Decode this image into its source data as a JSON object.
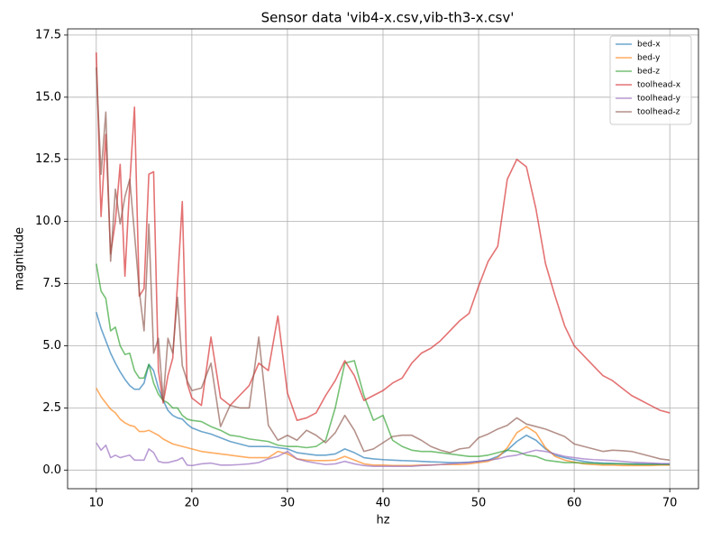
{
  "chart_data": {
    "type": "line",
    "title": "Sensor data 'vib4-x.csv,vib-th3-x.csv'",
    "x_label": "hz",
    "y_label": "magnitude",
    "x": [
      10,
      10.5,
      11,
      11.5,
      12,
      12.5,
      13,
      13.5,
      14,
      14.5,
      15,
      15.5,
      16,
      16.5,
      17,
      17.5,
      18,
      18.5,
      19,
      19.5,
      20,
      21,
      22,
      23,
      24,
      25,
      26,
      27,
      28,
      29,
      30,
      31,
      32,
      33,
      34,
      35,
      36,
      37,
      38,
      39,
      40,
      41,
      42,
      43,
      44,
      45,
      46,
      47,
      48,
      49,
      50,
      51,
      52,
      53,
      54,
      55,
      56,
      57,
      58,
      59,
      60,
      61,
      62,
      63,
      64,
      65,
      66,
      67,
      68,
      69,
      70
    ],
    "series": [
      {
        "name": "bed-x",
        "color": "#1f77b4",
        "values": [
          6.35,
          5.7,
          5.2,
          4.7,
          4.3,
          3.95,
          3.65,
          3.4,
          3.25,
          3.25,
          3.5,
          4.25,
          4.0,
          3.3,
          2.8,
          2.4,
          2.2,
          2.1,
          2.05,
          1.85,
          1.7,
          1.55,
          1.45,
          1.3,
          1.15,
          1.05,
          0.95,
          0.95,
          0.95,
          0.9,
          0.85,
          0.7,
          0.65,
          0.6,
          0.6,
          0.65,
          0.85,
          0.7,
          0.5,
          0.45,
          0.42,
          0.4,
          0.38,
          0.37,
          0.35,
          0.33,
          0.32,
          0.3,
          0.3,
          0.32,
          0.35,
          0.4,
          0.55,
          0.8,
          1.15,
          1.4,
          1.2,
          0.85,
          0.6,
          0.5,
          0.42,
          0.35,
          0.3,
          0.28,
          0.27,
          0.25,
          0.25,
          0.25,
          0.25,
          0.25,
          0.25
        ]
      },
      {
        "name": "bed-y",
        "color": "#ff7f0e",
        "values": [
          3.3,
          2.95,
          2.7,
          2.45,
          2.3,
          2.05,
          1.9,
          1.8,
          1.75,
          1.55,
          1.55,
          1.6,
          1.5,
          1.4,
          1.25,
          1.15,
          1.05,
          1.0,
          0.95,
          0.9,
          0.85,
          0.75,
          0.7,
          0.65,
          0.6,
          0.55,
          0.5,
          0.5,
          0.5,
          0.75,
          0.65,
          0.45,
          0.4,
          0.38,
          0.38,
          0.4,
          0.55,
          0.4,
          0.25,
          0.2,
          0.2,
          0.18,
          0.18,
          0.18,
          0.2,
          0.2,
          0.22,
          0.22,
          0.22,
          0.25,
          0.3,
          0.35,
          0.5,
          0.9,
          1.5,
          1.75,
          1.5,
          0.9,
          0.55,
          0.4,
          0.32,
          0.25,
          0.22,
          0.2,
          0.2,
          0.18,
          0.18,
          0.18,
          0.18,
          0.2,
          0.2
        ]
      },
      {
        "name": "bed-z",
        "color": "#2ca02c",
        "values": [
          8.3,
          7.2,
          6.9,
          5.6,
          5.75,
          5.0,
          4.65,
          4.7,
          4.0,
          3.7,
          3.7,
          4.25,
          3.5,
          3.05,
          2.8,
          2.7,
          2.5,
          2.5,
          2.2,
          2.05,
          2.0,
          1.95,
          1.75,
          1.6,
          1.4,
          1.35,
          1.25,
          1.2,
          1.15,
          1.0,
          0.95,
          0.95,
          0.9,
          0.95,
          1.2,
          2.5,
          4.3,
          4.4,
          3.0,
          2.0,
          2.2,
          1.2,
          0.95,
          0.8,
          0.75,
          0.75,
          0.7,
          0.65,
          0.6,
          0.55,
          0.55,
          0.6,
          0.7,
          0.8,
          0.75,
          0.6,
          0.55,
          0.4,
          0.35,
          0.3,
          0.3,
          0.28,
          0.27,
          0.25,
          0.25,
          0.25,
          0.23,
          0.22,
          0.22,
          0.22,
          0.22
        ]
      },
      {
        "name": "toolhead-x",
        "color": "#d62728",
        "values": [
          16.8,
          10.2,
          13.5,
          8.7,
          10.0,
          12.3,
          7.8,
          11.5,
          14.6,
          7.0,
          7.3,
          11.9,
          12.0,
          4.0,
          2.7,
          3.8,
          4.5,
          7.5,
          10.8,
          3.5,
          2.9,
          2.6,
          5.35,
          2.9,
          2.6,
          3.0,
          3.4,
          4.3,
          4.0,
          6.2,
          3.1,
          2.0,
          2.1,
          2.3,
          3.0,
          3.6,
          4.4,
          3.8,
          2.8,
          3.0,
          3.2,
          3.5,
          3.7,
          4.3,
          4.7,
          4.9,
          5.2,
          5.6,
          6.0,
          6.3,
          7.4,
          8.4,
          9.0,
          11.7,
          12.5,
          12.2,
          10.5,
          8.3,
          7.0,
          5.8,
          5.0,
          4.6,
          4.2,
          3.8,
          3.6,
          3.3,
          3.0,
          2.8,
          2.6,
          2.4,
          2.3
        ]
      },
      {
        "name": "toolhead-y",
        "color": "#9467bd",
        "values": [
          1.1,
          0.8,
          1.0,
          0.5,
          0.6,
          0.5,
          0.55,
          0.6,
          0.4,
          0.4,
          0.4,
          0.85,
          0.7,
          0.35,
          0.3,
          0.3,
          0.35,
          0.4,
          0.5,
          0.2,
          0.18,
          0.25,
          0.28,
          0.2,
          0.2,
          0.22,
          0.25,
          0.3,
          0.45,
          0.55,
          0.75,
          0.45,
          0.35,
          0.28,
          0.22,
          0.25,
          0.35,
          0.25,
          0.18,
          0.15,
          0.15,
          0.15,
          0.15,
          0.15,
          0.18,
          0.2,
          0.22,
          0.25,
          0.28,
          0.3,
          0.35,
          0.4,
          0.45,
          0.55,
          0.6,
          0.7,
          0.8,
          0.75,
          0.65,
          0.55,
          0.5,
          0.45,
          0.42,
          0.4,
          0.38,
          0.35,
          0.32,
          0.3,
          0.28,
          0.26,
          0.25
        ]
      },
      {
        "name": "toolhead-z",
        "color": "#8c564b",
        "values": [
          16.2,
          11.9,
          14.4,
          8.4,
          11.3,
          9.9,
          11.0,
          11.7,
          9.5,
          7.2,
          5.6,
          9.9,
          4.7,
          5.3,
          2.8,
          5.3,
          4.7,
          6.95,
          4.2,
          3.6,
          3.2,
          3.3,
          4.3,
          1.75,
          2.6,
          2.5,
          2.5,
          5.35,
          1.8,
          1.2,
          1.4,
          1.2,
          1.6,
          1.4,
          1.1,
          1.5,
          2.2,
          1.6,
          0.75,
          0.85,
          1.1,
          1.35,
          1.4,
          1.4,
          1.2,
          0.95,
          0.8,
          0.7,
          0.85,
          0.9,
          1.3,
          1.45,
          1.65,
          1.8,
          2.1,
          1.85,
          1.75,
          1.65,
          1.5,
          1.35,
          1.05,
          0.95,
          0.85,
          0.75,
          0.8,
          0.78,
          0.75,
          0.65,
          0.55,
          0.45,
          0.4
        ]
      }
    ],
    "xlim": [
      7,
      73
    ],
    "xticks": [
      10,
      20,
      30,
      40,
      50,
      60,
      70
    ],
    "ylim": [
      -0.75,
      17.75
    ],
    "yticks": [
      {
        "value": 0,
        "label": "0.0"
      },
      {
        "value": 2.5,
        "label": "2.5"
      },
      {
        "value": 5,
        "label": "5.0"
      },
      {
        "value": 7.5,
        "label": "7.5"
      },
      {
        "value": 10,
        "label": "10.0"
      },
      {
        "value": 12.5,
        "label": "12.5"
      },
      {
        "value": 15,
        "label": "15.0"
      },
      {
        "value": 17.5,
        "label": "17.5"
      }
    ],
    "grid": true,
    "legend": "upper right"
  }
}
